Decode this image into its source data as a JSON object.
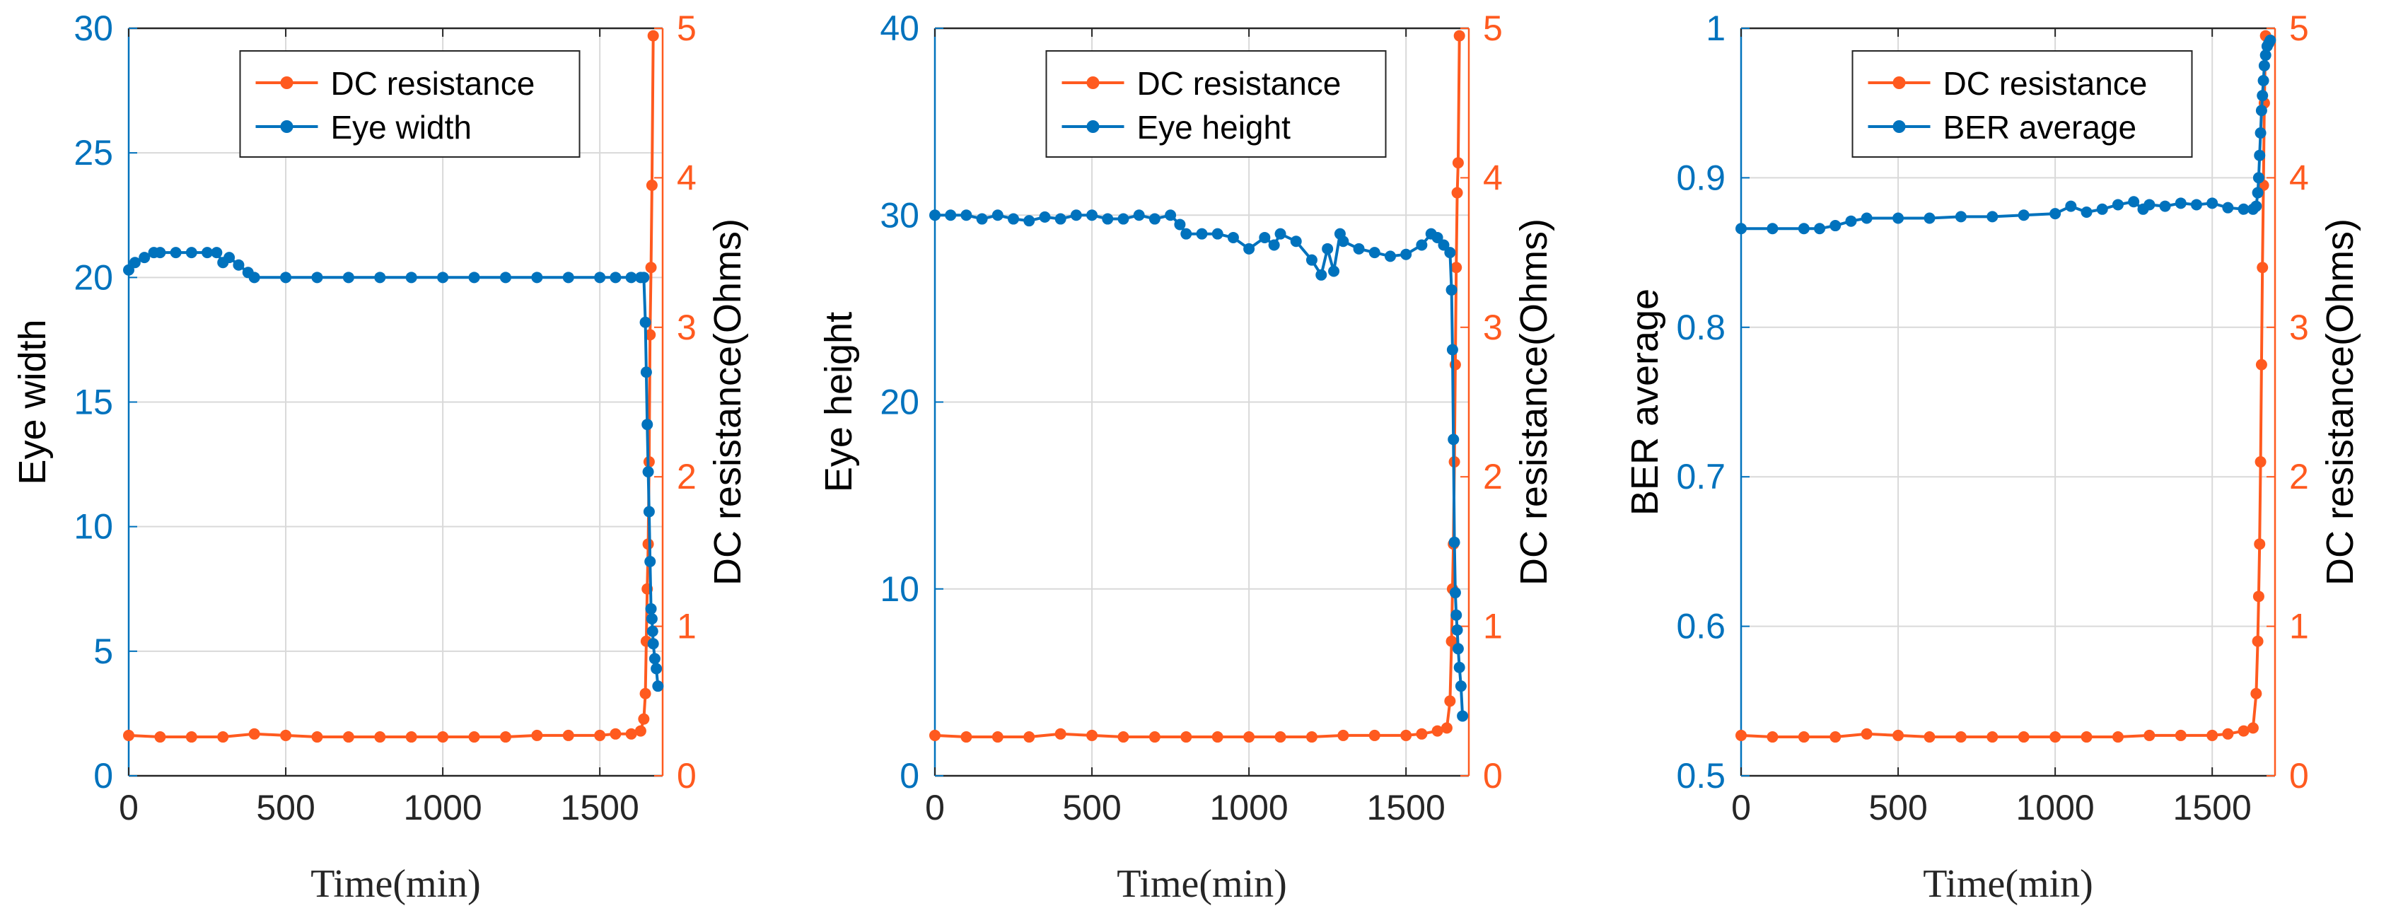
{
  "colors": {
    "left_axis": "#0072BD",
    "right_axis": "#FF5A1F",
    "grid": "#d9d9d9",
    "frame": "#262626"
  },
  "chart_data": [
    {
      "type": "line",
      "title": "",
      "xlabel": "Time(min)",
      "ylabel": "Eye width",
      "y2label": "DC resistance(Ohms)",
      "xlim": [
        0,
        1700
      ],
      "ylim": [
        0,
        30
      ],
      "y2lim": [
        0,
        5
      ],
      "xticks": [
        0,
        500,
        1000,
        1500
      ],
      "xtick_labels": [
        "0",
        "500",
        "1000",
        "1500"
      ],
      "yticks": [
        0,
        5,
        10,
        15,
        20,
        25,
        30
      ],
      "ytick_labels": [
        "0",
        "5",
        "10",
        "15",
        "20",
        "25",
        "30"
      ],
      "y2ticks": [
        0,
        1,
        2,
        3,
        4,
        5
      ],
      "y2tick_labels": [
        "0",
        "1",
        "2",
        "3",
        "4",
        "5"
      ],
      "grid": true,
      "legend_position": "top-center",
      "series": [
        {
          "name": "DC resistance",
          "axis": "right",
          "x": [
            0,
            100,
            200,
            300,
            400,
            500,
            600,
            700,
            800,
            900,
            1000,
            1100,
            1200,
            1300,
            1400,
            1500,
            1550,
            1600,
            1630,
            1640,
            1645,
            1648,
            1651,
            1654,
            1657,
            1660,
            1663,
            1666,
            1670
          ],
          "y": [
            0.27,
            0.26,
            0.26,
            0.26,
            0.28,
            0.27,
            0.26,
            0.26,
            0.26,
            0.26,
            0.26,
            0.26,
            0.26,
            0.27,
            0.27,
            0.27,
            0.28,
            0.28,
            0.3,
            0.38,
            0.55,
            0.9,
            1.25,
            1.55,
            2.1,
            2.95,
            3.4,
            3.95,
            4.95
          ]
        },
        {
          "name": "Eye width",
          "axis": "left",
          "x": [
            0,
            20,
            50,
            80,
            100,
            150,
            200,
            250,
            280,
            300,
            320,
            350,
            380,
            400,
            500,
            600,
            700,
            800,
            900,
            1000,
            1100,
            1200,
            1300,
            1400,
            1500,
            1550,
            1600,
            1630,
            1640,
            1645,
            1648,
            1651,
            1654,
            1657,
            1660,
            1663,
            1666,
            1668,
            1670,
            1675,
            1680,
            1685
          ],
          "y": [
            20.3,
            20.6,
            20.8,
            21.0,
            21.0,
            21.0,
            21.0,
            21.0,
            21.0,
            20.6,
            20.8,
            20.5,
            20.2,
            20.0,
            20.0,
            20.0,
            20.0,
            20.0,
            20.0,
            20.0,
            20.0,
            20.0,
            20.0,
            20.0,
            20.0,
            20.0,
            20.0,
            20.0,
            20.0,
            18.2,
            16.2,
            14.1,
            12.2,
            10.6,
            8.6,
            6.7,
            6.3,
            5.8,
            5.3,
            4.7,
            4.3,
            3.6
          ]
        }
      ]
    },
    {
      "type": "line",
      "title": "",
      "xlabel": "Time(min)",
      "ylabel": "Eye height",
      "y2label": "DC resistance(Ohms)",
      "xlim": [
        0,
        1700
      ],
      "ylim": [
        0,
        40
      ],
      "y2lim": [
        0,
        5
      ],
      "xticks": [
        0,
        500,
        1000,
        1500
      ],
      "xtick_labels": [
        "0",
        "500",
        "1000",
        "1500"
      ],
      "yticks": [
        0,
        10,
        20,
        30,
        40
      ],
      "ytick_labels": [
        "0",
        "10",
        "20",
        "30",
        "40"
      ],
      "y2ticks": [
        0,
        1,
        2,
        3,
        4,
        5
      ],
      "y2tick_labels": [
        "0",
        "1",
        "2",
        "3",
        "4",
        "5"
      ],
      "grid": true,
      "legend_position": "top-center",
      "series": [
        {
          "name": "DC resistance",
          "axis": "right",
          "x": [
            0,
            100,
            200,
            300,
            400,
            500,
            600,
            700,
            800,
            900,
            1000,
            1100,
            1200,
            1300,
            1400,
            1500,
            1550,
            1600,
            1630,
            1640,
            1645,
            1648,
            1651,
            1654,
            1657,
            1660,
            1663,
            1666,
            1670
          ],
          "y": [
            0.27,
            0.26,
            0.26,
            0.26,
            0.28,
            0.27,
            0.26,
            0.26,
            0.26,
            0.26,
            0.26,
            0.26,
            0.26,
            0.27,
            0.27,
            0.27,
            0.28,
            0.3,
            0.32,
            0.5,
            0.9,
            1.25,
            1.55,
            2.1,
            2.75,
            3.4,
            3.9,
            4.1,
            4.95
          ]
        },
        {
          "name": "Eye height",
          "axis": "left",
          "x": [
            0,
            50,
            100,
            150,
            200,
            250,
            300,
            350,
            400,
            450,
            500,
            550,
            600,
            650,
            700,
            750,
            780,
            800,
            850,
            900,
            950,
            1000,
            1050,
            1080,
            1100,
            1150,
            1200,
            1230,
            1250,
            1270,
            1290,
            1300,
            1350,
            1400,
            1450,
            1500,
            1550,
            1580,
            1600,
            1620,
            1640,
            1645,
            1648,
            1651,
            1654,
            1657,
            1660,
            1663,
            1666,
            1670,
            1675,
            1680
          ],
          "y": [
            30.0,
            30.0,
            30.0,
            29.8,
            30.0,
            29.8,
            29.7,
            29.9,
            29.8,
            30.0,
            30.0,
            29.8,
            29.8,
            30.0,
            29.8,
            30.0,
            29.5,
            29.0,
            29.0,
            29.0,
            28.8,
            28.2,
            28.8,
            28.4,
            29.0,
            28.6,
            27.6,
            26.8,
            28.2,
            27.0,
            29.0,
            28.6,
            28.2,
            28.0,
            27.8,
            27.9,
            28.4,
            29.0,
            28.8,
            28.4,
            28.0,
            26.0,
            22.8,
            18.0,
            12.5,
            9.8,
            8.6,
            7.8,
            6.8,
            5.8,
            4.8,
            3.2
          ]
        }
      ]
    },
    {
      "type": "line",
      "title": "",
      "xlabel": "Time(min)",
      "ylabel": "BER average",
      "y2label": "DC resistance(Ohms)",
      "xlim": [
        0,
        1700
      ],
      "ylim": [
        0.5,
        1.0
      ],
      "y2lim": [
        0,
        5
      ],
      "xticks": [
        0,
        500,
        1000,
        1500
      ],
      "xtick_labels": [
        "0",
        "500",
        "1000",
        "1500"
      ],
      "yticks": [
        0.5,
        0.6,
        0.7,
        0.8,
        0.9,
        1.0
      ],
      "ytick_labels": [
        "0.5",
        "0.6",
        "0.7",
        "0.8",
        "0.9",
        "1"
      ],
      "y2ticks": [
        0,
        1,
        2,
        3,
        4,
        5
      ],
      "y2tick_labels": [
        "0",
        "1",
        "2",
        "3",
        "4",
        "5"
      ],
      "grid": true,
      "legend_position": "top-center",
      "series": [
        {
          "name": "DC resistance",
          "axis": "right",
          "x": [
            0,
            100,
            200,
            300,
            400,
            500,
            600,
            700,
            800,
            900,
            1000,
            1100,
            1200,
            1300,
            1400,
            1500,
            1550,
            1600,
            1630,
            1640,
            1645,
            1648,
            1651,
            1654,
            1657,
            1660,
            1663,
            1666,
            1670
          ],
          "y": [
            0.27,
            0.26,
            0.26,
            0.26,
            0.28,
            0.27,
            0.26,
            0.26,
            0.26,
            0.26,
            0.26,
            0.26,
            0.26,
            0.27,
            0.27,
            0.27,
            0.28,
            0.3,
            0.32,
            0.55,
            0.9,
            1.2,
            1.55,
            2.1,
            2.75,
            3.4,
            3.95,
            4.5,
            4.95
          ]
        },
        {
          "name": "BER average",
          "axis": "left",
          "x": [
            0,
            100,
            200,
            250,
            300,
            350,
            400,
            500,
            600,
            700,
            800,
            900,
            1000,
            1050,
            1100,
            1150,
            1200,
            1250,
            1280,
            1300,
            1350,
            1400,
            1450,
            1500,
            1550,
            1600,
            1630,
            1640,
            1645,
            1648,
            1651,
            1654,
            1657,
            1660,
            1663,
            1666,
            1670,
            1675,
            1680,
            1685
          ],
          "y": [
            0.866,
            0.866,
            0.866,
            0.866,
            0.868,
            0.871,
            0.873,
            0.873,
            0.873,
            0.874,
            0.874,
            0.875,
            0.876,
            0.881,
            0.877,
            0.879,
            0.882,
            0.884,
            0.879,
            0.882,
            0.881,
            0.883,
            0.882,
            0.883,
            0.88,
            0.879,
            0.879,
            0.881,
            0.89,
            0.9,
            0.915,
            0.93,
            0.945,
            0.955,
            0.965,
            0.975,
            0.982,
            0.988,
            0.99,
            0.992
          ]
        }
      ]
    }
  ]
}
